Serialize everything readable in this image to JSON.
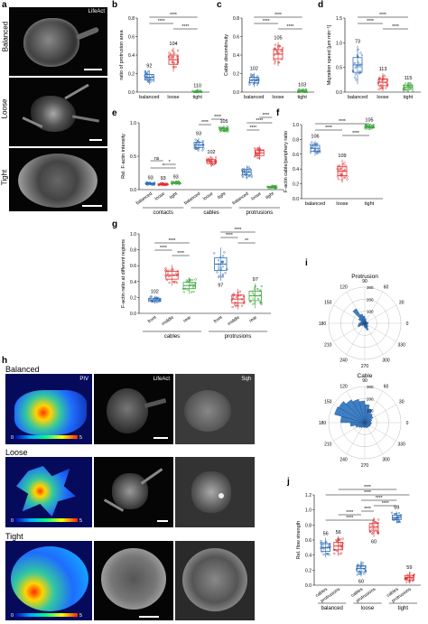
{
  "panel_letters": {
    "a": "a",
    "b": "b",
    "c": "c",
    "d": "d",
    "e": "e",
    "f": "f",
    "g": "g",
    "h": "h",
    "i": "i",
    "j": "j"
  },
  "panel_a": {
    "channel": "LifeAct",
    "rows": [
      "Balanced",
      "Loose",
      "Tight"
    ]
  },
  "panel_h": {
    "rows": [
      "Balanced",
      "Loose",
      "Tight"
    ],
    "columns": [
      "PIV",
      "LifeAct",
      "Sqh"
    ],
    "colorbar": {
      "min": "0",
      "max": "5"
    }
  },
  "sig": {
    "four": "****",
    "two": "**",
    "one": "*",
    "ns": "ns"
  },
  "chart_data": [
    {
      "id": "b",
      "type": "box",
      "ylabel": "ratio of protrusion area",
      "ylim": [
        0,
        0.8
      ],
      "yticks": [
        "0.0",
        "0.2",
        "0.4",
        "0.6",
        "0.8"
      ],
      "categories": [
        "balanced",
        "loose",
        "tight"
      ],
      "colors": [
        "#2f6db5",
        "#e03030",
        "#3aa63a"
      ],
      "medians": [
        0.16,
        0.35,
        0.0
      ],
      "n": [
        "92",
        "104",
        "110"
      ]
    },
    {
      "id": "c",
      "type": "box",
      "ylabel": "Cable discontinuity",
      "ylim": [
        0,
        0.8
      ],
      "yticks": [
        "0.0",
        "0.2",
        "0.4",
        "0.6",
        "0.8"
      ],
      "categories": [
        "balanced",
        "loose",
        "tight"
      ],
      "colors": [
        "#2f6db5",
        "#e03030",
        "#3aa63a"
      ],
      "medians": [
        0.13,
        0.41,
        0.01
      ],
      "n": [
        "102",
        "105",
        "103"
      ]
    },
    {
      "id": "d",
      "type": "box",
      "ylabel": "Migration speed [μm min⁻¹]",
      "ylim": [
        0,
        1.5
      ],
      "yticks": [
        "0.0",
        "0.5",
        "1.0",
        "1.5"
      ],
      "categories": [
        "balanced",
        "loose",
        "tight"
      ],
      "colors": [
        "#2f6db5",
        "#e03030",
        "#3aa63a"
      ],
      "medians": [
        0.55,
        0.2,
        0.1
      ],
      "n": [
        "73",
        "113",
        "115"
      ]
    },
    {
      "id": "e",
      "type": "box",
      "ylabel": "Rel. F-actin intensity",
      "ylim": [
        0,
        1.0
      ],
      "yticks": [
        "0.0",
        "0.5",
        "1.0"
      ],
      "groups": [
        "contacts",
        "cables",
        "protrusions"
      ],
      "subcategories": [
        "balanced",
        "loose",
        "tight"
      ],
      "colors": [
        "#2f6db5",
        "#e03030",
        "#3aa63a"
      ],
      "medians": [
        [
          0.09,
          0.08,
          0.1
        ],
        [
          0.67,
          0.42,
          0.91
        ],
        [
          0.26,
          0.55,
          0.04
        ]
      ],
      "n": [
        [
          "93",
          "93",
          "93"
        ],
        [
          "93",
          "102",
          "105"
        ],
        [
          "",
          "",
          ""
        ]
      ]
    },
    {
      "id": "f",
      "type": "box",
      "ylabel": "F-actin cable/periphery ratio",
      "ylim": [
        0,
        1.0
      ],
      "yticks": [
        "0.0",
        "0.2",
        "0.4",
        "0.6",
        "0.8",
        "1.0"
      ],
      "categories": [
        "balanced",
        "loose",
        "tight"
      ],
      "colors": [
        "#2f6db5",
        "#e03030",
        "#3aa63a"
      ],
      "medians": [
        0.68,
        0.37,
        0.97
      ],
      "n": [
        "106",
        "109",
        "105"
      ]
    },
    {
      "id": "g",
      "type": "box",
      "ylabel": "F-actin ratio at different regions",
      "ylim": [
        0,
        1.0
      ],
      "yticks": [
        "0.0",
        "0.2",
        "0.4",
        "0.6",
        "0.8",
        "1.0"
      ],
      "groups": [
        "cables",
        "protrusions"
      ],
      "subcategories": [
        "front",
        "middle",
        "rear"
      ],
      "colors": [
        "#2f6db5",
        "#e03030",
        "#3aa63a"
      ],
      "medians": [
        [
          0.17,
          0.48,
          0.35
        ],
        [
          0.62,
          0.18,
          0.22
        ]
      ],
      "n": [
        [
          "102",
          "",
          ""
        ],
        [
          "97",
          "",
          "97"
        ]
      ]
    },
    {
      "id": "i",
      "type": "polar",
      "titles": [
        "Protrusion",
        "Cable"
      ],
      "rlabels": [
        "0",
        "100",
        "200",
        "300"
      ],
      "angle_labels": [
        "0",
        "30",
        "60",
        "90",
        "120",
        "150",
        "180",
        "210",
        "240",
        "270",
        "300",
        "330"
      ]
    },
    {
      "id": "j",
      "type": "box",
      "ylabel": "Rel. flow strength",
      "ylim": [
        0,
        1.2
      ],
      "yticks": [
        "0.0",
        "0.2",
        "0.4",
        "0.6",
        "0.8",
        "1.0",
        "1.2"
      ],
      "groups": [
        "balanced",
        "loose",
        "tight"
      ],
      "subcategories": [
        "cables",
        "protrusions"
      ],
      "colors": [
        "#2f6db5",
        "#e03030"
      ],
      "medians": [
        [
          0.5,
          0.52
        ],
        [
          0.22,
          0.77
        ],
        [
          0.9,
          0.1
        ]
      ],
      "n": [
        [
          "56",
          "56"
        ],
        [
          "60",
          "60"
        ],
        [
          "59",
          "59"
        ]
      ]
    }
  ]
}
